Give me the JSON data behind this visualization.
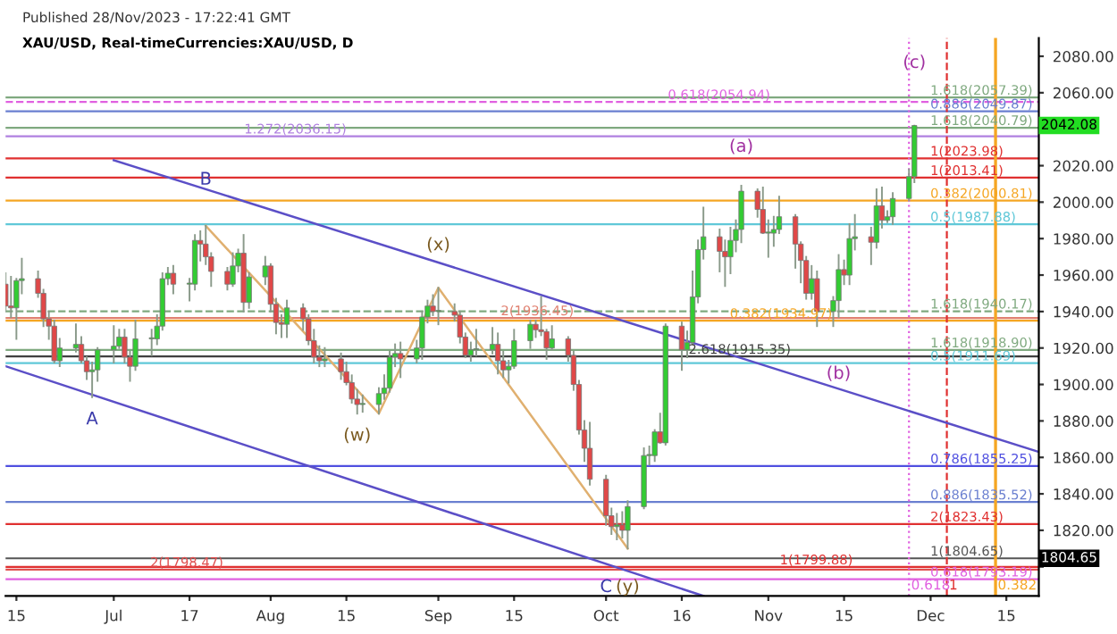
{
  "chart_data": {
    "type": "candlestick",
    "title": "XAU/USD, Real-timeCurrencies:XAU/USD, D",
    "subtitle": "Published 28/Nov/2023 - 17:22:41 GMT",
    "colors": [
      "#e04848",
      "#e04848",
      "#33cc33",
      "#33cc33",
      "#e04848",
      "#e04848",
      "#e04848",
      "#e04848",
      "#33cc33",
      "#33cc33",
      "#e04848",
      "#e04848",
      "#33cc33",
      "#33cc33",
      "#33cc33",
      "#33cc33",
      "#e04848",
      "#e04848",
      "#33cc33",
      "#33cc33",
      "#33cc33",
      "#33cc33",
      "#33cc33",
      "#e04848",
      "#33cc33",
      "#33cc33",
      "#e04848",
      "#e04848",
      "#e04848",
      "#e04848",
      "#33cc33",
      "#33cc33",
      "#e04848",
      "#33cc33",
      "#33cc33",
      "#e04848",
      "#e04848",
      "#e04848",
      "#33cc33",
      "#e04848",
      "#e04848",
      "#e04848",
      "#e04848",
      "#33cc33",
      "#e04848",
      "#e04848",
      "#e04848",
      "#e04848",
      "#33cc33",
      "#33cc33",
      "#33cc33",
      "#33cc33",
      "#33cc33",
      "#e04848",
      "#33cc33",
      "#33cc33",
      "#33cc33",
      "#e04848",
      "#33cc33",
      "#e04848",
      "#e04848",
      "#e04848",
      "#33cc33",
      "#33cc33",
      "#33cc33",
      "#e04848",
      "#e04848",
      "#33cc33",
      "#33cc33",
      "#33cc33",
      "#e04848",
      "#e04848",
      "#e04848",
      "#33cc33",
      "#e04848",
      "#e04848",
      "#e04848",
      "#e04848",
      "#e04848",
      "#e04848",
      "#e04848",
      "#33cc33",
      "#e04848",
      "#33cc33",
      "#33cc33",
      "#33cc33",
      "#33cc33",
      "#e04848",
      "#33cc33",
      "#e04848",
      "#33cc33",
      "#33cc33",
      "#33cc33",
      "#33cc33",
      "#e04848",
      "#e04848",
      "#33cc33",
      "#33cc33",
      "#33cc33",
      "#e04848",
      "#e04848",
      "#33cc33",
      "#33cc33",
      "#33cc33",
      "#e04848",
      "#e04848",
      "#e04848",
      "#33cc33",
      "#e04848",
      "#33cc33",
      "#33cc33",
      "#e04848",
      "#33cc33",
      "#33cc33",
      "#e04848",
      "#33cc33",
      "#e04848",
      "#33cc33",
      "#33cc33",
      "#33cc33",
      "#33cc33"
    ],
    "xlim": [
      "2023-06-13",
      "2023-12-21"
    ],
    "ylim": [
      1784,
      2090
    ],
    "xticks": [
      {
        "value": "2023-06-15",
        "label": "15"
      },
      {
        "value": "2023-07-03",
        "label": "Jul"
      },
      {
        "value": "2023-07-17",
        "label": "17"
      },
      {
        "value": "2023-08-01",
        "label": "Aug"
      },
      {
        "value": "2023-08-15",
        "label": "15"
      },
      {
        "value": "2023-09-01",
        "label": "Sep"
      },
      {
        "value": "2023-09-15",
        "label": "15"
      },
      {
        "value": "2023-10-02",
        "label": "Oct"
      },
      {
        "value": "2023-10-16",
        "label": "16"
      },
      {
        "value": "2023-11-01",
        "label": "Nov"
      },
      {
        "value": "2023-11-15",
        "label": "15"
      },
      {
        "value": "2023-12-01",
        "label": "Dec"
      },
      {
        "value": "2023-12-15",
        "label": "15"
      }
    ],
    "yticks": [
      {
        "value": 1800,
        "label": null
      },
      {
        "value": 1820,
        "label": "1820.00"
      },
      {
        "value": 1840,
        "label": "1840.00"
      },
      {
        "value": 1860,
        "label": "1860.00"
      },
      {
        "value": 1880,
        "label": "1880.00"
      },
      {
        "value": 1900,
        "label": "1900.00"
      },
      {
        "value": 1920,
        "label": "1920.00"
      },
      {
        "value": 1940,
        "label": "1940.00"
      },
      {
        "value": 1960,
        "label": "1960.00"
      },
      {
        "value": 1980,
        "label": "1980.00"
      },
      {
        "value": 2000,
        "label": "2000.00"
      },
      {
        "value": 2020,
        "label": "2020.00"
      },
      {
        "value": 2040,
        "label": null
      },
      {
        "value": 2060,
        "label": "2060.00"
      },
      {
        "value": 2080,
        "label": "2080.00"
      }
    ],
    "grid": false,
    "x": [
      "2023-06-13",
      "2023-06-14",
      "2023-06-15",
      "2023-06-16",
      "2023-06-19",
      "2023-06-20",
      "2023-06-21",
      "2023-06-22",
      "2023-06-23",
      "2023-06-26",
      "2023-06-27",
      "2023-06-28",
      "2023-06-29",
      "2023-06-30",
      "2023-07-03",
      "2023-07-04",
      "2023-07-05",
      "2023-07-06",
      "2023-07-07",
      "2023-07-10",
      "2023-07-11",
      "2023-07-12",
      "2023-07-13",
      "2023-07-14",
      "2023-07-17",
      "2023-07-18",
      "2023-07-19",
      "2023-07-20",
      "2023-07-21",
      "2023-07-24",
      "2023-07-25",
      "2023-07-26",
      "2023-07-27",
      "2023-07-28",
      "2023-07-31",
      "2023-08-01",
      "2023-08-02",
      "2023-08-03",
      "2023-08-04",
      "2023-08-07",
      "2023-08-08",
      "2023-08-09",
      "2023-08-10",
      "2023-08-11",
      "2023-08-14",
      "2023-08-15",
      "2023-08-16",
      "2023-08-17",
      "2023-08-18",
      "2023-08-21",
      "2023-08-22",
      "2023-08-23",
      "2023-08-24",
      "2023-08-25",
      "2023-08-28",
      "2023-08-29",
      "2023-08-30",
      "2023-08-31",
      "2023-09-01",
      "2023-09-04",
      "2023-09-05",
      "2023-09-06",
      "2023-09-07",
      "2023-09-08",
      "2023-09-11",
      "2023-09-12",
      "2023-09-13",
      "2023-09-14",
      "2023-09-15",
      "2023-09-18",
      "2023-09-19",
      "2023-09-20",
      "2023-09-21",
      "2023-09-22",
      "2023-09-25",
      "2023-09-26",
      "2023-09-27",
      "2023-09-28",
      "2023-09-29",
      "2023-10-02",
      "2023-10-03",
      "2023-10-04",
      "2023-10-05",
      "2023-10-06",
      "2023-10-09",
      "2023-10-10",
      "2023-10-11",
      "2023-10-12",
      "2023-10-13",
      "2023-10-16",
      "2023-10-17",
      "2023-10-18",
      "2023-10-19",
      "2023-10-20",
      "2023-10-23",
      "2023-10-24",
      "2023-10-25",
      "2023-10-26",
      "2023-10-27",
      "2023-10-30",
      "2023-10-31",
      "2023-11-01",
      "2023-11-02",
      "2023-11-03",
      "2023-11-06",
      "2023-11-07",
      "2023-11-08",
      "2023-11-09",
      "2023-11-10",
      "2023-11-13",
      "2023-11-14",
      "2023-11-15",
      "2023-11-16",
      "2023-11-17",
      "2023-11-20",
      "2023-11-21",
      "2023-11-22",
      "2023-11-23",
      "2023-11-24",
      "2023-11-27",
      "2023-11-28"
    ],
    "ohlc": [
      [
        1955,
        1961,
        1940,
        1943
      ],
      [
        1943,
        1959,
        1937,
        1942
      ],
      [
        1942,
        1958,
        1925,
        1957
      ],
      [
        1957,
        1969,
        1950,
        1958
      ],
      [
        1958,
        1962,
        1948,
        1950
      ],
      [
        1950,
        1952,
        1932,
        1936
      ],
      [
        1936,
        1940,
        1925,
        1932
      ],
      [
        1932,
        1935,
        1912,
        1913
      ],
      [
        1913,
        1925,
        1910,
        1920
      ],
      [
        1920,
        1933,
        1918,
        1922
      ],
      [
        1922,
        1926,
        1912,
        1913
      ],
      [
        1913,
        1915,
        1903,
        1907
      ],
      [
        1907,
        1912,
        1893,
        1908
      ],
      [
        1908,
        1920,
        1902,
        1919
      ],
      [
        1919,
        1932,
        1912,
        1921
      ],
      [
        1921,
        1930,
        1920,
        1926
      ],
      [
        1926,
        1930,
        1912,
        1915
      ],
      [
        1915,
        1918,
        1902,
        1910
      ],
      [
        1910,
        1935,
        1908,
        1925
      ],
      [
        1925,
        1930,
        1916,
        1925
      ],
      [
        1925,
        1938,
        1922,
        1932
      ],
      [
        1932,
        1961,
        1930,
        1958
      ],
      [
        1958,
        1964,
        1955,
        1961
      ],
      [
        1961,
        1965,
        1950,
        1955
      ],
      [
        1955,
        1958,
        1946,
        1955
      ],
      [
        1955,
        1982,
        1952,
        1979
      ],
      [
        1979,
        1984,
        1968,
        1977
      ],
      [
        1977,
        1987,
        1966,
        1970
      ],
      [
        1970,
        1972,
        1954,
        1962
      ],
      [
        1962,
        1964,
        1952,
        1955
      ],
      [
        1955,
        1972,
        1954,
        1965
      ],
      [
        1965,
        1974,
        1962,
        1972
      ],
      [
        1972,
        1982,
        1940,
        1945
      ],
      [
        1945,
        1961,
        1942,
        1959
      ],
      [
        1959,
        1970,
        1955,
        1965
      ],
      [
        1965,
        1966,
        1940,
        1944
      ],
      [
        1944,
        1947,
        1928,
        1934
      ],
      [
        1934,
        1938,
        1926,
        1933
      ],
      [
        1933,
        1946,
        1926,
        1942
      ],
      [
        1942,
        1944,
        1930,
        1936
      ],
      [
        1936,
        1938,
        1922,
        1924
      ],
      [
        1924,
        1930,
        1912,
        1915
      ],
      [
        1915,
        1921,
        1910,
        1913
      ],
      [
        1913,
        1920,
        1910,
        1914
      ],
      [
        1914,
        1917,
        1903,
        1907
      ],
      [
        1907,
        1912,
        1900,
        1901
      ],
      [
        1901,
        1905,
        1890,
        1892
      ],
      [
        1892,
        1897,
        1884,
        1889
      ],
      [
        1889,
        1894,
        1885,
        1889
      ],
      [
        1889,
        1898,
        1884,
        1895
      ],
      [
        1895,
        1905,
        1892,
        1898
      ],
      [
        1898,
        1918,
        1896,
        1915
      ],
      [
        1915,
        1922,
        1910,
        1917
      ],
      [
        1917,
        1923,
        1904,
        1914
      ],
      [
        1914,
        1924,
        1912,
        1920
      ],
      [
        1920,
        1940,
        1914,
        1937
      ],
      [
        1937,
        1946,
        1934,
        1943
      ],
      [
        1943,
        1949,
        1938,
        1940
      ],
      [
        1940,
        1953,
        1933,
        1940
      ],
      [
        1940,
        1944,
        1935,
        1938
      ],
      [
        1938,
        1940,
        1923,
        1926
      ],
      [
        1926,
        1928,
        1915,
        1916
      ],
      [
        1916,
        1923,
        1913,
        1919
      ],
      [
        1919,
        1930,
        1916,
        1919
      ],
      [
        1919,
        1931,
        1917,
        1922
      ],
      [
        1922,
        1928,
        1906,
        1913
      ],
      [
        1913,
        1918,
        1904,
        1908
      ],
      [
        1908,
        1913,
        1901,
        1910
      ],
      [
        1910,
        1930,
        1909,
        1924
      ],
      [
        1924,
        1935,
        1920,
        1933
      ],
      [
        1933,
        1935,
        1926,
        1930
      ],
      [
        1930,
        1948,
        1927,
        1929
      ],
      [
        1929,
        1930,
        1914,
        1920
      ],
      [
        1920,
        1932,
        1919,
        1925
      ],
      [
        1925,
        1926,
        1913,
        1916
      ],
      [
        1916,
        1918,
        1897,
        1900
      ],
      [
        1900,
        1902,
        1873,
        1875
      ],
      [
        1875,
        1880,
        1858,
        1865
      ],
      [
        1865,
        1879,
        1845,
        1848
      ],
      [
        1848,
        1850,
        1823,
        1828
      ],
      [
        1828,
        1832,
        1818,
        1822
      ],
      [
        1822,
        1829,
        1815,
        1823
      ],
      [
        1823,
        1830,
        1816,
        1820
      ],
      [
        1820,
        1836,
        1810,
        1833
      ],
      [
        1833,
        1865,
        1832,
        1861
      ],
      [
        1861,
        1866,
        1856,
        1861
      ],
      [
        1861,
        1875,
        1858,
        1874
      ],
      [
        1874,
        1884,
        1868,
        1868
      ],
      [
        1868,
        1933,
        1867,
        1932
      ],
      [
        1932,
        1934,
        1908,
        1919
      ],
      [
        1919,
        1929,
        1915,
        1923
      ],
      [
        1923,
        1962,
        1922,
        1948
      ],
      [
        1948,
        1979,
        1945,
        1974
      ],
      [
        1974,
        1997,
        1969,
        1981
      ],
      [
        1981,
        1985,
        1962,
        1973
      ],
      [
        1973,
        1979,
        1954,
        1970
      ],
      [
        1970,
        1986,
        1961,
        1979
      ],
      [
        1979,
        1990,
        1973,
        1985
      ],
      [
        1985,
        2009,
        1978,
        2006
      ],
      [
        2006,
        2007,
        1992,
        1996
      ],
      [
        1996,
        2008,
        1983,
        1983
      ],
      [
        1983,
        1990,
        1970,
        1983
      ],
      [
        1983,
        1992,
        1976,
        1985
      ],
      [
        1985,
        2003,
        1983,
        1992
      ],
      [
        1992,
        1993,
        1964,
        1977
      ],
      [
        1977,
        1978,
        1956,
        1968
      ],
      [
        1968,
        1970,
        1947,
        1950
      ],
      [
        1950,
        1965,
        1947,
        1958
      ],
      [
        1958,
        1962,
        1932,
        1940
      ],
      [
        1940,
        1948,
        1932,
        1946
      ],
      [
        1946,
        1971,
        1937,
        1963
      ],
      [
        1963,
        1968,
        1955,
        1960
      ],
      [
        1960,
        1988,
        1955,
        1980
      ],
      [
        1980,
        1993,
        1974,
        1981
      ],
      [
        1981,
        1986,
        1966,
        1978
      ],
      [
        1978,
        2007,
        1975,
        1998
      ],
      [
        1998,
        2008,
        1986,
        1990
      ],
      [
        1990,
        1995,
        1989,
        1992
      ],
      [
        1992,
        2005,
        1988,
        2002
      ],
      [
        2002,
        2018,
        2001,
        2014
      ],
      [
        2014,
        2042,
        2011,
        2042
      ]
    ],
    "series": [
      {
        "type": "line",
        "color": "#5b4fc7",
        "x": [
          "2023-07-03",
          "2023-12-21"
        ],
        "values": [
          2023,
          1863
        ]
      },
      {
        "type": "line",
        "color": "#5b4fc7",
        "x": [
          "2023-06-13",
          "2023-10-20"
        ],
        "values": [
          1910,
          1784
        ]
      },
      {
        "type": "line",
        "color": "#e0b070",
        "x": [
          "2023-07-20",
          "2023-08-21",
          "2023-09-01",
          "2023-10-06"
        ],
        "values": [
          1987,
          1884,
          1953,
          1810
        ]
      }
    ],
    "ref_lines": [
      {
        "axis": "y",
        "value": 2057.39,
        "label": "1.618(2057.39)",
        "color": "#7fa97f"
      },
      {
        "axis": "y",
        "value": 2054.94,
        "label": "0.618(2054.94)",
        "color": "#e060e0",
        "line_style": "dashed"
      },
      {
        "axis": "y",
        "value": 2049.87,
        "label": "0.886(2049.87)",
        "color": "#6a7fd0"
      },
      {
        "axis": "y",
        "value": 2040.79,
        "label": "1.618(2040.79)",
        "color": "#7fa97f"
      },
      {
        "axis": "y",
        "value": 2036.15,
        "label": "1.272(2036.15)",
        "color": "#b080e0"
      },
      {
        "axis": "y",
        "value": 2023.98,
        "label": "1(2023.98)",
        "color": "#e03030"
      },
      {
        "axis": "y",
        "value": 2013.41,
        "label": "1(2013.41)",
        "color": "#e03030"
      },
      {
        "axis": "y",
        "value": 2000.81,
        "label": "0.382(2000.81)",
        "color": "#f5a623"
      },
      {
        "axis": "y",
        "value": 1987.88,
        "label": "0.5(1987.88)",
        "color": "#60c8d8"
      },
      {
        "axis": "y",
        "value": 1940.17,
        "label": "1.618(1940.17)",
        "color": "#7fa97f",
        "line_style": "dashed"
      },
      {
        "axis": "y",
        "value": 1936.45,
        "label": "2(1936.45)",
        "color": "#e08070"
      },
      {
        "axis": "y",
        "value": 1934.97,
        "label": "0.382(1934.97)",
        "color": "#f5a623"
      },
      {
        "axis": "y",
        "value": 1918.9,
        "label": "1.618(1918.90)",
        "color": "#7fa97f"
      },
      {
        "axis": "y",
        "value": 1915.35,
        "label": "2.618(1915.35)",
        "color": "#404040"
      },
      {
        "axis": "y",
        "value": 1911.69,
        "label": "0.5(1911.69)",
        "color": "#60c8d8"
      },
      {
        "axis": "y",
        "value": 1855.25,
        "label": "0.786(1855.25)",
        "color": "#5050e0"
      },
      {
        "axis": "y",
        "value": 1835.52,
        "label": "0.886(1835.52)",
        "color": "#6a7fd0"
      },
      {
        "axis": "y",
        "value": 1823.43,
        "label": "2(1823.43)",
        "color": "#e03030"
      },
      {
        "axis": "y",
        "value": 1804.65,
        "label": "1(1804.65)",
        "color": "#555555"
      },
      {
        "axis": "y",
        "value": 1799.88,
        "label": "1(1799.88)",
        "color": "#e03030"
      },
      {
        "axis": "y",
        "value": 1798.47,
        "label": "2(1798.47)",
        "color": "#e05050"
      },
      {
        "axis": "y",
        "value": 1793.19,
        "label": "0.618(1793.19)",
        "color": "#e060e0"
      },
      {
        "axis": "x",
        "value": "2023-11-27",
        "label": "0.618",
        "color": "#e060e0",
        "line_style": "dotted"
      },
      {
        "axis": "x",
        "value": "2023-12-04",
        "label": "1",
        "color": "#e03030",
        "line_style": "dashed"
      },
      {
        "axis": "x",
        "value": "2023-12-13",
        "label": "0.382",
        "color": "#f5a623"
      }
    ],
    "annotations": [
      {
        "text": "A",
        "x": "2023-06-29",
        "y": 1893
      },
      {
        "text": "B",
        "x": "2023-07-20",
        "y": 2000
      },
      {
        "text": "(w)",
        "x": "2023-08-17",
        "y": 1884
      },
      {
        "text": "(x)",
        "x": "2023-09-01",
        "y": 1964
      },
      {
        "text": "C",
        "x": "2023-10-02",
        "y": 1801
      },
      {
        "text": "(y)",
        "x": "2023-10-06",
        "y": 1801
      },
      {
        "text": "(a)",
        "x": "2023-10-27",
        "y": 2018
      },
      {
        "text": "(b)",
        "x": "2023-11-14",
        "y": 1918
      },
      {
        "text": "(c)",
        "x": "2023-11-28",
        "y": 2064
      },
      {
        "text": "2042.08",
        "x": "2023-12-21",
        "y": 2042.08
      },
      {
        "text": "1804.65",
        "x": "2023-12-21",
        "y": 1804.65
      }
    ]
  }
}
